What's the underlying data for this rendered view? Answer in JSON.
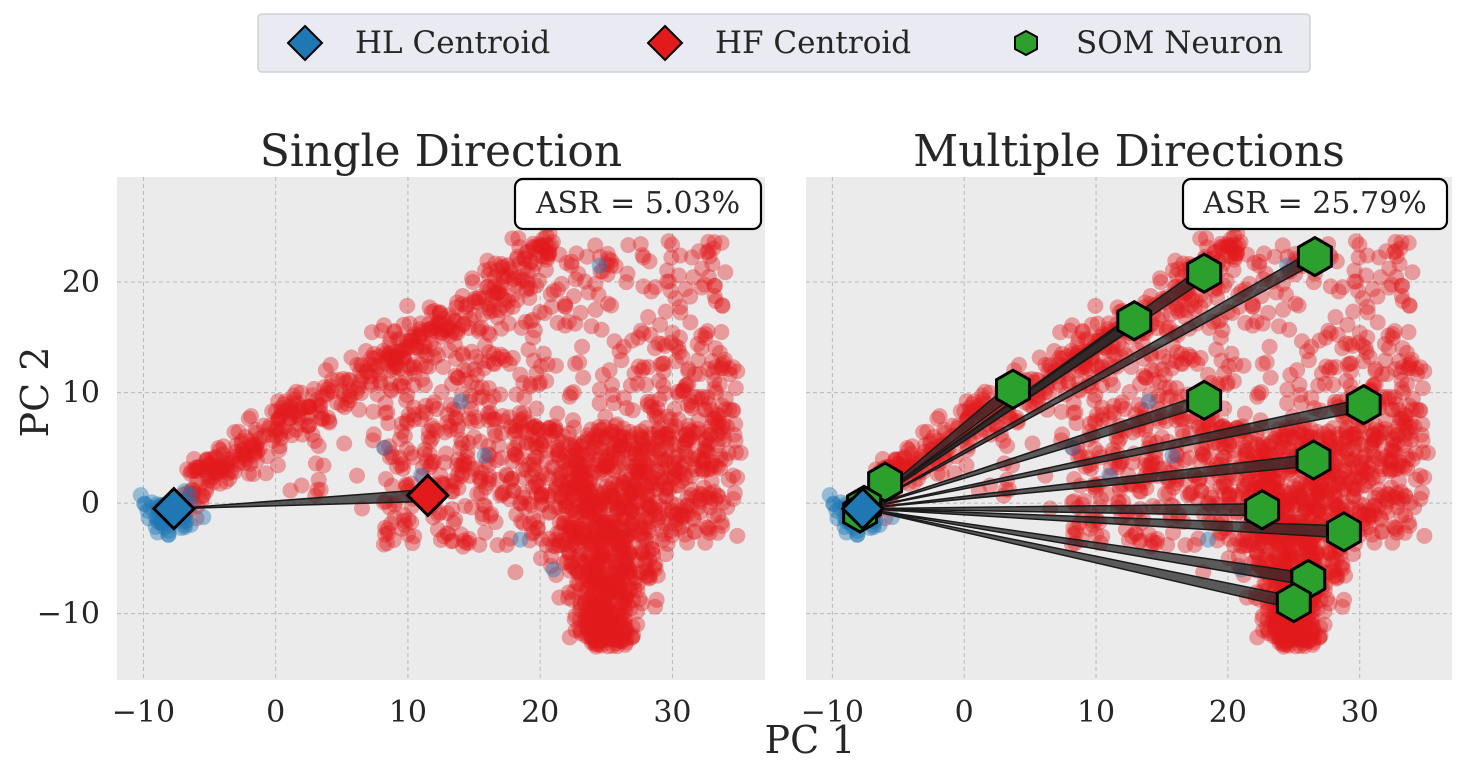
{
  "colors": {
    "hl": "#1f77b4",
    "hf": "#e31a1c",
    "som": "#2ca02c",
    "plot_bg": "#ebebeb",
    "connector": "#262626"
  },
  "legend": {
    "items": [
      {
        "label": "HL Centroid",
        "marker": "diamond",
        "color": "#1f77b4"
      },
      {
        "label": "HF Centroid",
        "marker": "diamond",
        "color": "#e31a1c"
      },
      {
        "label": "SOM Neuron",
        "marker": "hexagon",
        "color": "#2ca02c"
      }
    ]
  },
  "figure": {
    "xlabel": "PC 1",
    "ylabel": "PC 2"
  },
  "chart_data": [
    {
      "type": "scatter",
      "title": "Single Direction",
      "annotation": "ASR = 5.03%",
      "xlabel": "PC 1",
      "ylabel": "PC 2",
      "xlim": [
        -12,
        37
      ],
      "ylim": [
        -16,
        29.5
      ],
      "xticks": [
        "−10",
        "0",
        "10",
        "20",
        "30"
      ],
      "xtick_values": [
        -10,
        0,
        10,
        20,
        30
      ],
      "yticks": [
        "−10",
        "0",
        "10",
        "20"
      ],
      "ytick_values": [
        -10,
        0,
        10,
        20
      ],
      "grid": true,
      "hl_centroid": [
        -7.7,
        -0.5
      ],
      "hf_centroid": [
        11.5,
        0.7
      ],
      "som_neurons": []
    },
    {
      "type": "scatter",
      "title": "Multiple Directions",
      "annotation": "ASR = 25.79%",
      "xlabel": "PC 1",
      "ylabel": "",
      "xlim": [
        -12,
        37
      ],
      "ylim": [
        -16,
        29.5
      ],
      "xticks": [
        "−10",
        "0",
        "10",
        "20",
        "30"
      ],
      "xtick_values": [
        -10,
        0,
        10,
        20,
        30
      ],
      "yticks": [],
      "ytick_values": [
        -10,
        0,
        10,
        20
      ],
      "grid": true,
      "hl_centroid": [
        -7.7,
        -0.5
      ],
      "hf_centroid": null,
      "som_neurons": [
        [
          -6.0,
          1.9
        ],
        [
          -7.6,
          -0.2
        ],
        [
          -7.9,
          -0.9
        ],
        [
          3.7,
          10.3
        ],
        [
          12.9,
          16.5
        ],
        [
          18.2,
          20.8
        ],
        [
          26.6,
          22.3
        ],
        [
          18.2,
          9.3
        ],
        [
          30.3,
          8.9
        ],
        [
          26.5,
          3.9
        ],
        [
          22.6,
          -0.6
        ],
        [
          28.8,
          -2.6
        ],
        [
          26.1,
          -6.9
        ],
        [
          25.0,
          -9.0
        ]
      ]
    }
  ]
}
